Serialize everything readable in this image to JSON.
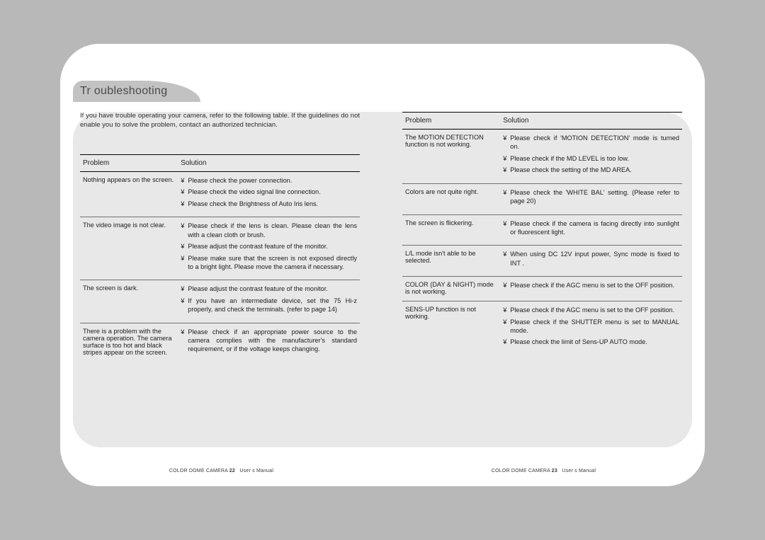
{
  "title": "Tr oubleshooting",
  "intro": "If you have trouble operating your camera, refer to the following table. If the guidelines do not enable  you to solve the problem, contact an authorized technician.",
  "headers": {
    "problem": "Problem",
    "solution": "Solution"
  },
  "left_rows": [
    {
      "problem": "Nothing appears on the screen.",
      "solutions": [
        "Please check the power connection.",
        "Please check the video signal line connection.",
        "Please check the Brightness of Auto Iris lens."
      ]
    },
    {
      "problem": "The video image is not clear.",
      "solutions": [
        "Please check if the lens is clean. Please clean the lens with a clean cloth or brush.",
        "Please adjust the contrast feature of the monitor.",
        "Please make sure that the screen is not exposed directly to a bright light. Please move the camera if necessary."
      ]
    },
    {
      "problem": "The screen is dark.",
      "solutions": [
        "Please adjust the contrast feature of the monitor.",
        "If you have an intermediate device, set the 75 Hi-z properly, and check the terminals. (refer to page 14)"
      ]
    },
    {
      "problem": "There is a problem with the camera operation. The camera surface is too hot and black stripes appear on the screen.",
      "solutions": [
        "Please check if an appropriate power source to the camera complies with the manufacturer's standard requirement, or if the voltage keeps changing."
      ]
    }
  ],
  "right_rows": [
    {
      "problem": "The MOTION DETECTION function is not working.",
      "solutions": [
        "Please check if 'MOTION DETECTION' mode is turned on.",
        "Please check if the MD LEVEL is too low.",
        "Please check the setting of the MD AREA."
      ]
    },
    {
      "problem": "Colors are not quite right.",
      "solutions": [
        "Please check the 'WHITE BAL' setting. (Please refer to page 20)"
      ]
    },
    {
      "problem": "The screen is flickering.",
      "solutions": [
        "Please check if the camera is facing directly into sunlight or fluorescent light."
      ]
    },
    {
      "problem": "L/L mode isn't able to be selected.",
      "solutions": [
        "When using DC 12V input power, Sync mode is fixed to  INT ."
      ]
    },
    {
      "problem": "COLOR (DAY & NIGHT) mode is not working.",
      "solutions": [
        "Please check if the AGC menu is set to the OFF position."
      ]
    },
    {
      "problem": "SENS-UP function is not working.",
      "solutions": [
        "Please check if the AGC menu is set to the OFF position.",
        "Please check if the SHUTTER menu is set to MANUAL mode.",
        "Please check the limit of Sens-UP AUTO mode."
      ]
    }
  ],
  "footer": {
    "left": {
      "prefix": "COLOR DOME CAMERA",
      "page": "22",
      "suffix": "User s Manual"
    },
    "right": {
      "prefix": "COLOR DOME CAMERA",
      "page": "23",
      "suffix": "User s Manual"
    }
  }
}
